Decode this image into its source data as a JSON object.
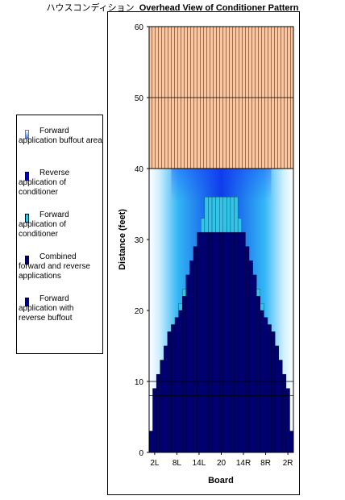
{
  "title": {
    "jp": "ハウスコンディション",
    "en": "Overhead View of Conditioner Pattern"
  },
  "colors": {
    "buffout": "#2196f3",
    "reverse": "#00008b",
    "forward": "#33c3e6",
    "combined": "#000070",
    "reverse_buffout": "#02027a",
    "unoiled": "#f7c8a0",
    "unoiled_stripe": "#a06a48"
  },
  "legend": [
    {
      "label": "Forward application buffout area",
      "color": "#3f7fff"
    },
    {
      "label": "Reverse application of conditioner",
      "color": "#0000cc"
    },
    {
      "label": "Forward application of conditioner",
      "color": "#33c3e6"
    },
    {
      "label": "Combined forward and reverse applications",
      "color": "#000070"
    },
    {
      "label": "Forward application with reverse buffout",
      "color": "#000090"
    }
  ],
  "chart_data": {
    "type": "bar",
    "xlabel": "Board",
    "ylabel": "Distance (feet)",
    "ylim": [
      0,
      60
    ],
    "yticks": [
      0,
      10,
      20,
      30,
      40,
      50,
      60
    ],
    "xtick_labels": [
      "2L",
      "8L",
      "14L",
      "20",
      "14R",
      "8R",
      "2R"
    ],
    "boards": [
      "1L",
      "2L",
      "3L",
      "4L",
      "5L",
      "6L",
      "7L",
      "8L",
      "9L",
      "10L",
      "11L",
      "12L",
      "13L",
      "14L",
      "15L",
      "16L",
      "17L",
      "18L",
      "19L",
      "20",
      "19R",
      "18R",
      "17R",
      "16R",
      "15R",
      "14R",
      "13R",
      "12R",
      "11R",
      "10R",
      "9R",
      "8R",
      "7R",
      "6R",
      "5R",
      "4R",
      "3R",
      "2R",
      "1R"
    ],
    "pattern_length": 40,
    "lane_length": 60,
    "series": [
      {
        "name": "Forward application buffout area",
        "values": [
          40,
          40,
          40,
          40,
          40,
          40,
          40,
          40,
          40,
          40,
          40,
          40,
          40,
          40,
          40,
          40,
          40,
          40,
          40,
          40,
          40,
          40,
          40,
          40,
          40,
          40,
          40,
          40,
          40,
          40,
          40,
          40,
          40,
          40,
          40,
          40,
          40,
          40,
          40
        ]
      },
      {
        "name": "Forward application of conditioner",
        "values": [
          3,
          9,
          11,
          13,
          15,
          17,
          18,
          19,
          21,
          23,
          25,
          27,
          29,
          31,
          33,
          36,
          36,
          36,
          36,
          36,
          36,
          36,
          36,
          36,
          33,
          31,
          29,
          27,
          25,
          23,
          21,
          19,
          18,
          17,
          15,
          13,
          11,
          9,
          3
        ]
      },
      {
        "name": "Reverse application of conditioner",
        "values": [
          3,
          8,
          8,
          8,
          8,
          8,
          8,
          8,
          8,
          8,
          8,
          8,
          8,
          8,
          8,
          8,
          8,
          8,
          8,
          8,
          8,
          8,
          8,
          8,
          8,
          8,
          8,
          8,
          8,
          8,
          8,
          8,
          8,
          8,
          8,
          8,
          8,
          8,
          3
        ]
      },
      {
        "name": "Combined forward and reverse applications",
        "values": [
          3,
          9,
          11,
          13,
          15,
          17,
          18,
          19,
          20,
          22,
          25,
          27,
          29,
          31,
          31,
          31,
          31,
          31,
          31,
          31,
          31,
          31,
          31,
          31,
          31,
          31,
          29,
          27,
          25,
          22,
          20,
          19,
          18,
          17,
          15,
          13,
          11,
          9,
          3
        ]
      }
    ]
  }
}
